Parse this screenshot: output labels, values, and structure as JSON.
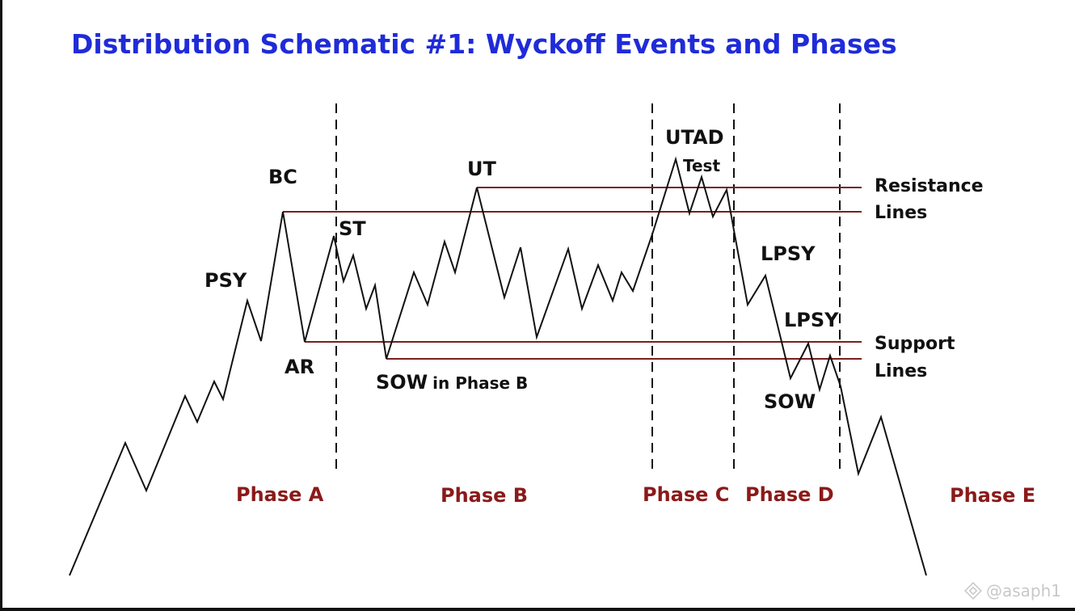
{
  "title": "Distribution Schematic #1: Wyckoff Events and Phases",
  "events": {
    "psy": "PSY",
    "bc": "BC",
    "ar": "AR",
    "st": "ST",
    "ut": "UT",
    "sow_phase_b_main": "SOW",
    "sow_phase_b_suffix": "in Phase B",
    "utad": "UTAD",
    "test": "Test",
    "lpsy_1": "LPSY",
    "lpsy_2": "LPSY",
    "sow": "SOW"
  },
  "side_labels": {
    "resistance_line1": "Resistance",
    "resistance_line2": "Lines",
    "support_line1": "Support",
    "support_line2": "Lines"
  },
  "phases": [
    "Phase A",
    "Phase B",
    "Phase C",
    "Phase D",
    "Phase E"
  ],
  "watermark": "@asaph1",
  "colors": {
    "title": "#1f2bd9",
    "phase_label": "#8b1a1a",
    "level_line": "#7a1e1e",
    "price_line": "#111111",
    "divider": "#111111"
  }
}
